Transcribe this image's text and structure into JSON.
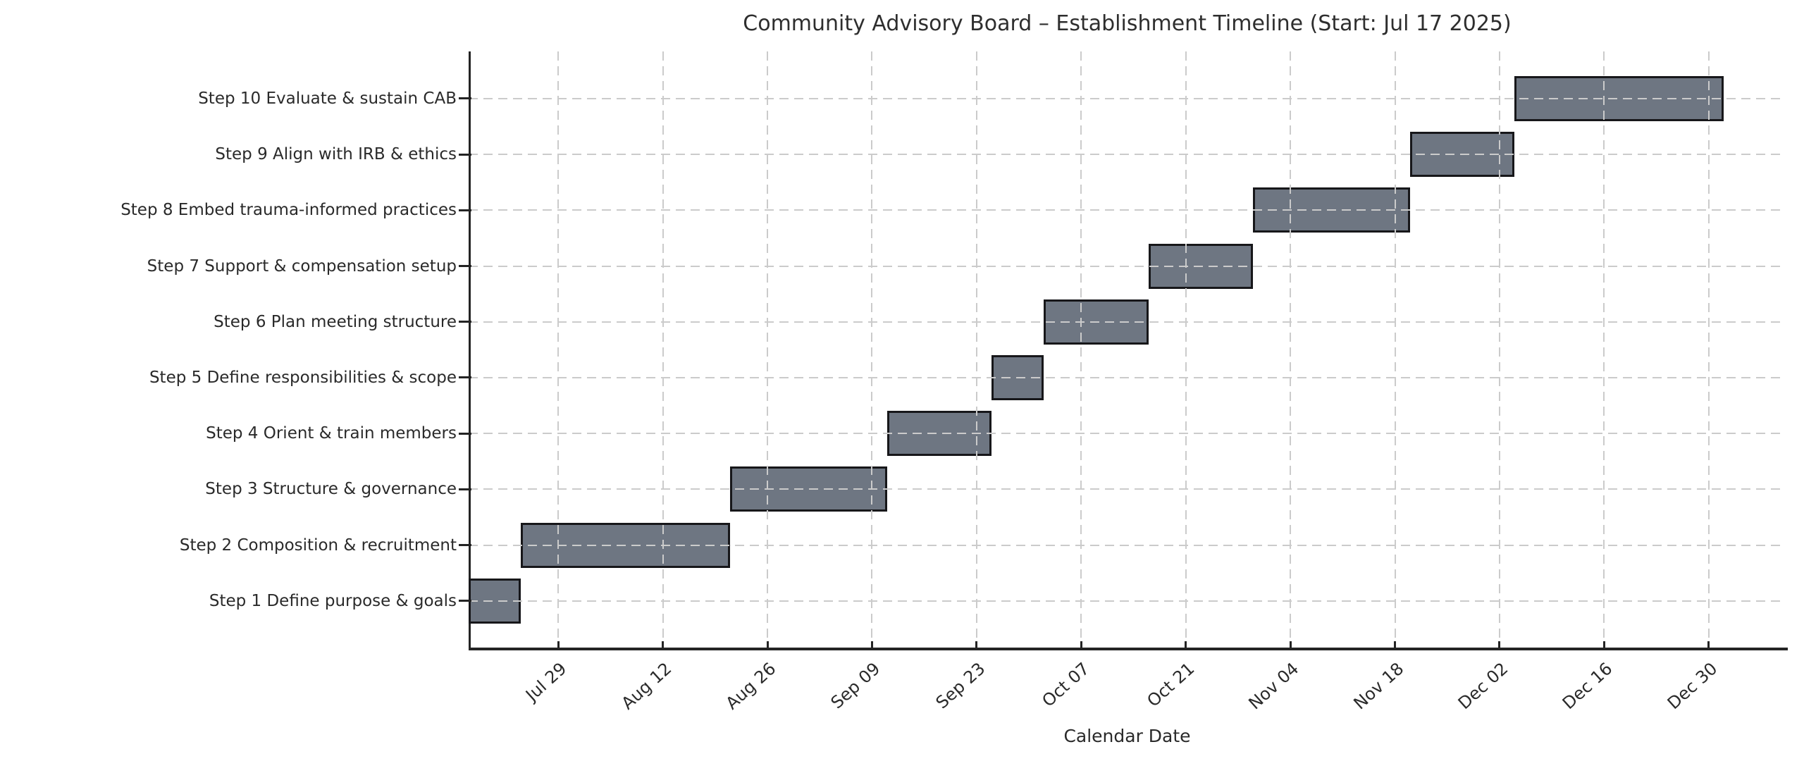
{
  "chart_data": {
    "type": "gantt",
    "title": "Community Advisory Board – Establishment Timeline (Start: Jul 17 2025)",
    "xlabel": "Calendar Date",
    "start_date": "Jul 17 2025",
    "x_range_days": [
      0,
      176.3
    ],
    "grid": "dashed, drawn over bars",
    "legend": "none",
    "tasks": [
      {
        "label": "Step 1 Define purpose & goals",
        "start": "Jul 17",
        "end": "Jul 24",
        "start_day": 0,
        "duration_days": 7
      },
      {
        "label": "Step 2 Composition & recruitment",
        "start": "Jul 24",
        "end": "Aug 21",
        "start_day": 7,
        "duration_days": 28
      },
      {
        "label": "Step 3 Structure & governance",
        "start": "Aug 21",
        "end": "Sep 11",
        "start_day": 35,
        "duration_days": 21
      },
      {
        "label": "Step 4 Orient & train members",
        "start": "Sep 11",
        "end": "Sep 25",
        "start_day": 56,
        "duration_days": 14
      },
      {
        "label": "Step 5 Define responsibilities & scope",
        "start": "Sep 25",
        "end": "Oct 02",
        "start_day": 70,
        "duration_days": 7
      },
      {
        "label": "Step 6 Plan meeting structure",
        "start": "Oct 02",
        "end": "Oct 16",
        "start_day": 77,
        "duration_days": 14
      },
      {
        "label": "Step 7 Support & compensation setup",
        "start": "Oct 16",
        "end": "Oct 30",
        "start_day": 91,
        "duration_days": 14
      },
      {
        "label": "Step 8 Embed trauma-informed practices",
        "start": "Oct 30",
        "end": "Nov 20",
        "start_day": 105,
        "duration_days": 21
      },
      {
        "label": "Step 9 Align with IRB & ethics",
        "start": "Nov 20",
        "end": "Dec 04",
        "start_day": 126,
        "duration_days": 14
      },
      {
        "label": "Step 10 Evaluate & sustain CAB",
        "start": "Dec 04",
        "end": "Jan 01",
        "start_day": 140,
        "duration_days": 28
      }
    ],
    "x_ticks": [
      {
        "label": "Jul 29",
        "day": 12
      },
      {
        "label": "Aug 12",
        "day": 26
      },
      {
        "label": "Aug 26",
        "day": 40
      },
      {
        "label": "Sep 09",
        "day": 54
      },
      {
        "label": "Sep 23",
        "day": 68
      },
      {
        "label": "Oct 07",
        "day": 82
      },
      {
        "label": "Oct 21",
        "day": 96
      },
      {
        "label": "Nov 04",
        "day": 110
      },
      {
        "label": "Nov 18",
        "day": 124
      },
      {
        "label": "Dec 02",
        "day": 138
      },
      {
        "label": "Dec 16",
        "day": 152
      },
      {
        "label": "Dec 30",
        "day": 166
      }
    ],
    "colors": {
      "bar_fill": "#6e7682",
      "bar_edge": "#17171a",
      "grid": "#cbcbcb",
      "spine": "#242424",
      "text": "#2a2a2a",
      "background": "#ffffff"
    }
  }
}
